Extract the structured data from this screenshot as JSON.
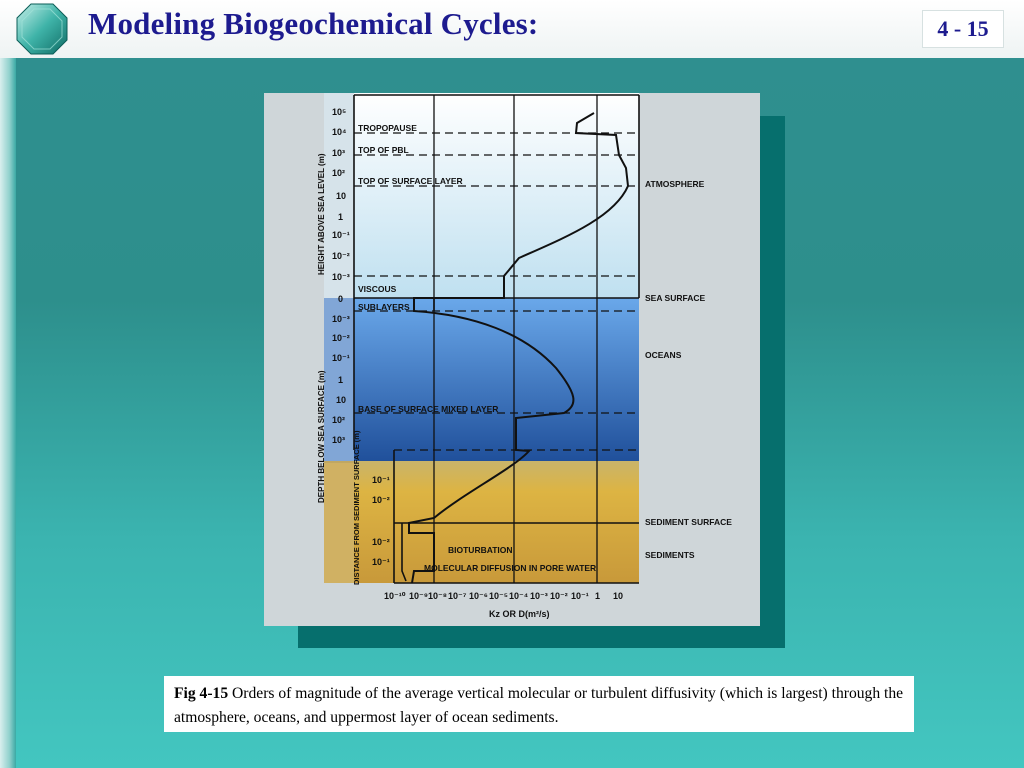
{
  "header": {
    "title": "Modeling Biogeochemical Cycles:",
    "slide_number": "4 - 15"
  },
  "figure": {
    "y_axis_upper_label": "HEIGHT ABOVE SEA LEVEL (m)",
    "y_axis_lower_label": "DEPTH BELOW SEA SURFACE (m)",
    "y_axis_sediment_label": "DISTANCE FROM SEDIMENT SURFACE (m)",
    "x_axis_label": "Kz OR D(m²/s)",
    "upper_ticks": [
      "10⁵",
      "10⁴",
      "10³",
      "10²",
      "10",
      "1",
      "10⁻¹",
      "10⁻²",
      "10⁻³",
      "0"
    ],
    "lower_ticks": [
      "10⁻³",
      "10⁻²",
      "10⁻¹",
      "1",
      "10",
      "10²",
      "10³"
    ],
    "sediment_ticks": [
      "10⁻¹",
      "10⁻²",
      "10⁻²",
      "10⁻¹"
    ],
    "x_ticks": [
      "10⁻¹⁰",
      "10⁻⁹",
      "10⁻⁸",
      "10⁻⁷",
      "10⁻⁶",
      "10⁻⁵",
      "10⁻⁴",
      "10⁻³",
      "10⁻²",
      "10⁻¹",
      "1",
      "10"
    ],
    "inner_labels": {
      "tropopause": "TROPOPAUSE",
      "top_pbl": "TOP OF PBL",
      "top_surface_layer": "TOP OF SURFACE LAYER",
      "viscous": "VISCOUS",
      "sublayers": "SUBLAYERS",
      "base_mixed_layer": "BASE OF SURFACE MIXED LAYER",
      "bioturbation": "BIOTURBATION",
      "molecular_diffusion": "MOLECULAR DIFFUSION IN PORE WATER"
    },
    "right_labels": {
      "atmosphere": "ATMOSPHERE",
      "sea_surface": "SEA SURFACE",
      "oceans": "OCEANS",
      "sediment_surface": "SEDIMENT SURFACE",
      "sediments": "SEDIMENTS"
    },
    "colors": {
      "atmosphere_top": "#ffffff",
      "atmosphere_bottom": "#bfe0f0",
      "ocean_top": "#6aa8ea",
      "ocean_bottom": "#1f4f9a",
      "sediment": "#d8b040"
    }
  },
  "caption": {
    "label": "Fig 4-15",
    "text": " Orders of magnitude of the average vertical molecular or turbulent diffusivity (which is largest) through the atmosphere, oceans, and uppermost layer of ocean sediments."
  }
}
